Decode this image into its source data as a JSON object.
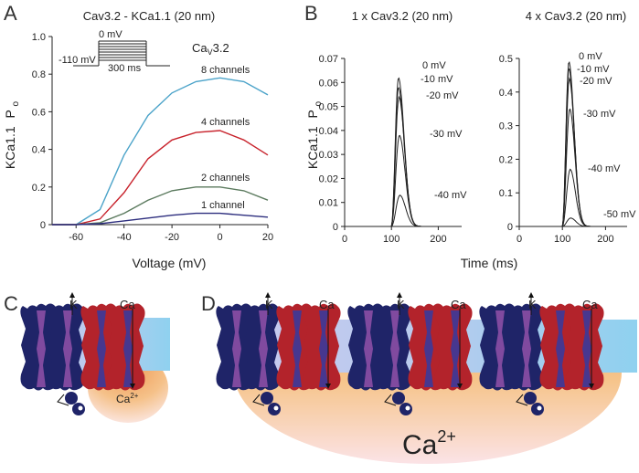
{
  "panels": {
    "A": {
      "label": "A",
      "title": "Cav3.2 - KCa1.1 (20 nm)",
      "ylabel_main": "KCa1.1",
      "ylabel_sub": "P",
      "ylabel_subscript": "o",
      "xlabel": "Voltage (mV)",
      "inset": {
        "hold_label": "-110 mV",
        "top_label": "0 mV",
        "duration_label": "300 ms",
        "steps": 8
      },
      "annotation_main": "Ca",
      "annotation_sub": "V",
      "annotation_tail": "3.2"
    },
    "B": {
      "label": "B",
      "title_left": "1 x Cav3.2 (20 nm)",
      "title_right": "4 x Cav3.2 (20 nm)",
      "ylabel_main": "KCa1.1",
      "ylabel_sub": "P",
      "ylabel_subscript": "o",
      "xlabel": "Time (ms)"
    },
    "C": {
      "label": "C",
      "k_label": "K",
      "ca_label": "Ca",
      "ca_main": "Ca",
      "ca_sup": "2+"
    },
    "D": {
      "label": "D",
      "k_label": "K",
      "ca_label": "Ca",
      "ca_main": "Ca",
      "ca_sup": "2+"
    }
  },
  "colors": {
    "membrane": "#b3c9ec",
    "kchannel": "#1f2468",
    "kchannel_inner": "#8b4fa5",
    "cachannel": "#b3232b",
    "cachannel_inner": "#3b3a9a",
    "calcium_cloud": "#f0a868"
  },
  "chart_data": [
    {
      "id": "panel-a",
      "type": "line",
      "x": [
        -70,
        -60,
        -50,
        -40,
        -30,
        -20,
        -10,
        0,
        10,
        20
      ],
      "xlim": [
        -70,
        20
      ],
      "ylim": [
        0,
        1
      ],
      "xticks": [
        -60,
        -40,
        -20,
        0,
        20
      ],
      "yticks": [
        0,
        0.2,
        0.4,
        0.6,
        0.8,
        1
      ],
      "ytick_labels": [
        "0",
        "0.2",
        "0.4",
        "0.6",
        "0.8",
        "1.0"
      ],
      "baseline_dashed": 0,
      "series": [
        {
          "name": "8 channels",
          "color": "#4ba3c9",
          "values": [
            0,
            0,
            0.08,
            0.37,
            0.58,
            0.7,
            0.76,
            0.78,
            0.76,
            0.69
          ]
        },
        {
          "name": "4 channels",
          "color": "#c8232c",
          "values": [
            0,
            0,
            0.03,
            0.17,
            0.35,
            0.45,
            0.49,
            0.5,
            0.45,
            0.37
          ]
        },
        {
          "name": "2 channels",
          "color": "#5b7a5e",
          "values": [
            0,
            0,
            0.01,
            0.06,
            0.13,
            0.18,
            0.2,
            0.2,
            0.18,
            0.13
          ]
        },
        {
          "name": "1 channel",
          "color": "#2d2e7e",
          "values": [
            0,
            0,
            0.005,
            0.02,
            0.035,
            0.05,
            0.06,
            0.06,
            0.05,
            0.04
          ]
        }
      ]
    },
    {
      "id": "panel-b-left",
      "type": "line",
      "xlim": [
        0,
        250
      ],
      "ylim": [
        0,
        0.07
      ],
      "xticks": [
        0,
        100,
        200
      ],
      "yticks": [
        0,
        0.01,
        0.02,
        0.03,
        0.04,
        0.05,
        0.06,
        0.07
      ],
      "ytick_labels": [
        "0",
        "0.01",
        "0.02",
        "0.03",
        "0.04",
        "0.05",
        "0.06",
        "0.07"
      ],
      "onset": 100,
      "series": [
        {
          "name": "0 mV",
          "peak": 0.062,
          "peak_time": 115
        },
        {
          "name": "-10 mV",
          "peak": 0.058,
          "peak_time": 115
        },
        {
          "name": "-20 mV",
          "peak": 0.054,
          "peak_time": 116
        },
        {
          "name": "-30 mV",
          "peak": 0.038,
          "peak_time": 117
        },
        {
          "name": "-40 mV",
          "peak": 0.013,
          "peak_time": 118
        }
      ]
    },
    {
      "id": "panel-b-right",
      "type": "line",
      "xlim": [
        0,
        250
      ],
      "ylim": [
        0,
        0.5
      ],
      "xticks": [
        0,
        100,
        200
      ],
      "yticks": [
        0,
        0.1,
        0.2,
        0.3,
        0.4,
        0.5
      ],
      "ytick_labels": [
        "0",
        "0.1",
        "0.2",
        "0.3",
        "0.4",
        "0.5"
      ],
      "onset": 100,
      "series": [
        {
          "name": "0 mV",
          "peak": 0.49,
          "peak_time": 115
        },
        {
          "name": "-10 mV",
          "peak": 0.47,
          "peak_time": 115
        },
        {
          "name": "-20 mV",
          "peak": 0.44,
          "peak_time": 116
        },
        {
          "name": "-30 mV",
          "peak": 0.35,
          "peak_time": 117
        },
        {
          "name": "-40 mV",
          "peak": 0.17,
          "peak_time": 118
        },
        {
          "name": "-50 mV",
          "peak": 0.025,
          "peak_time": 119
        }
      ]
    }
  ]
}
